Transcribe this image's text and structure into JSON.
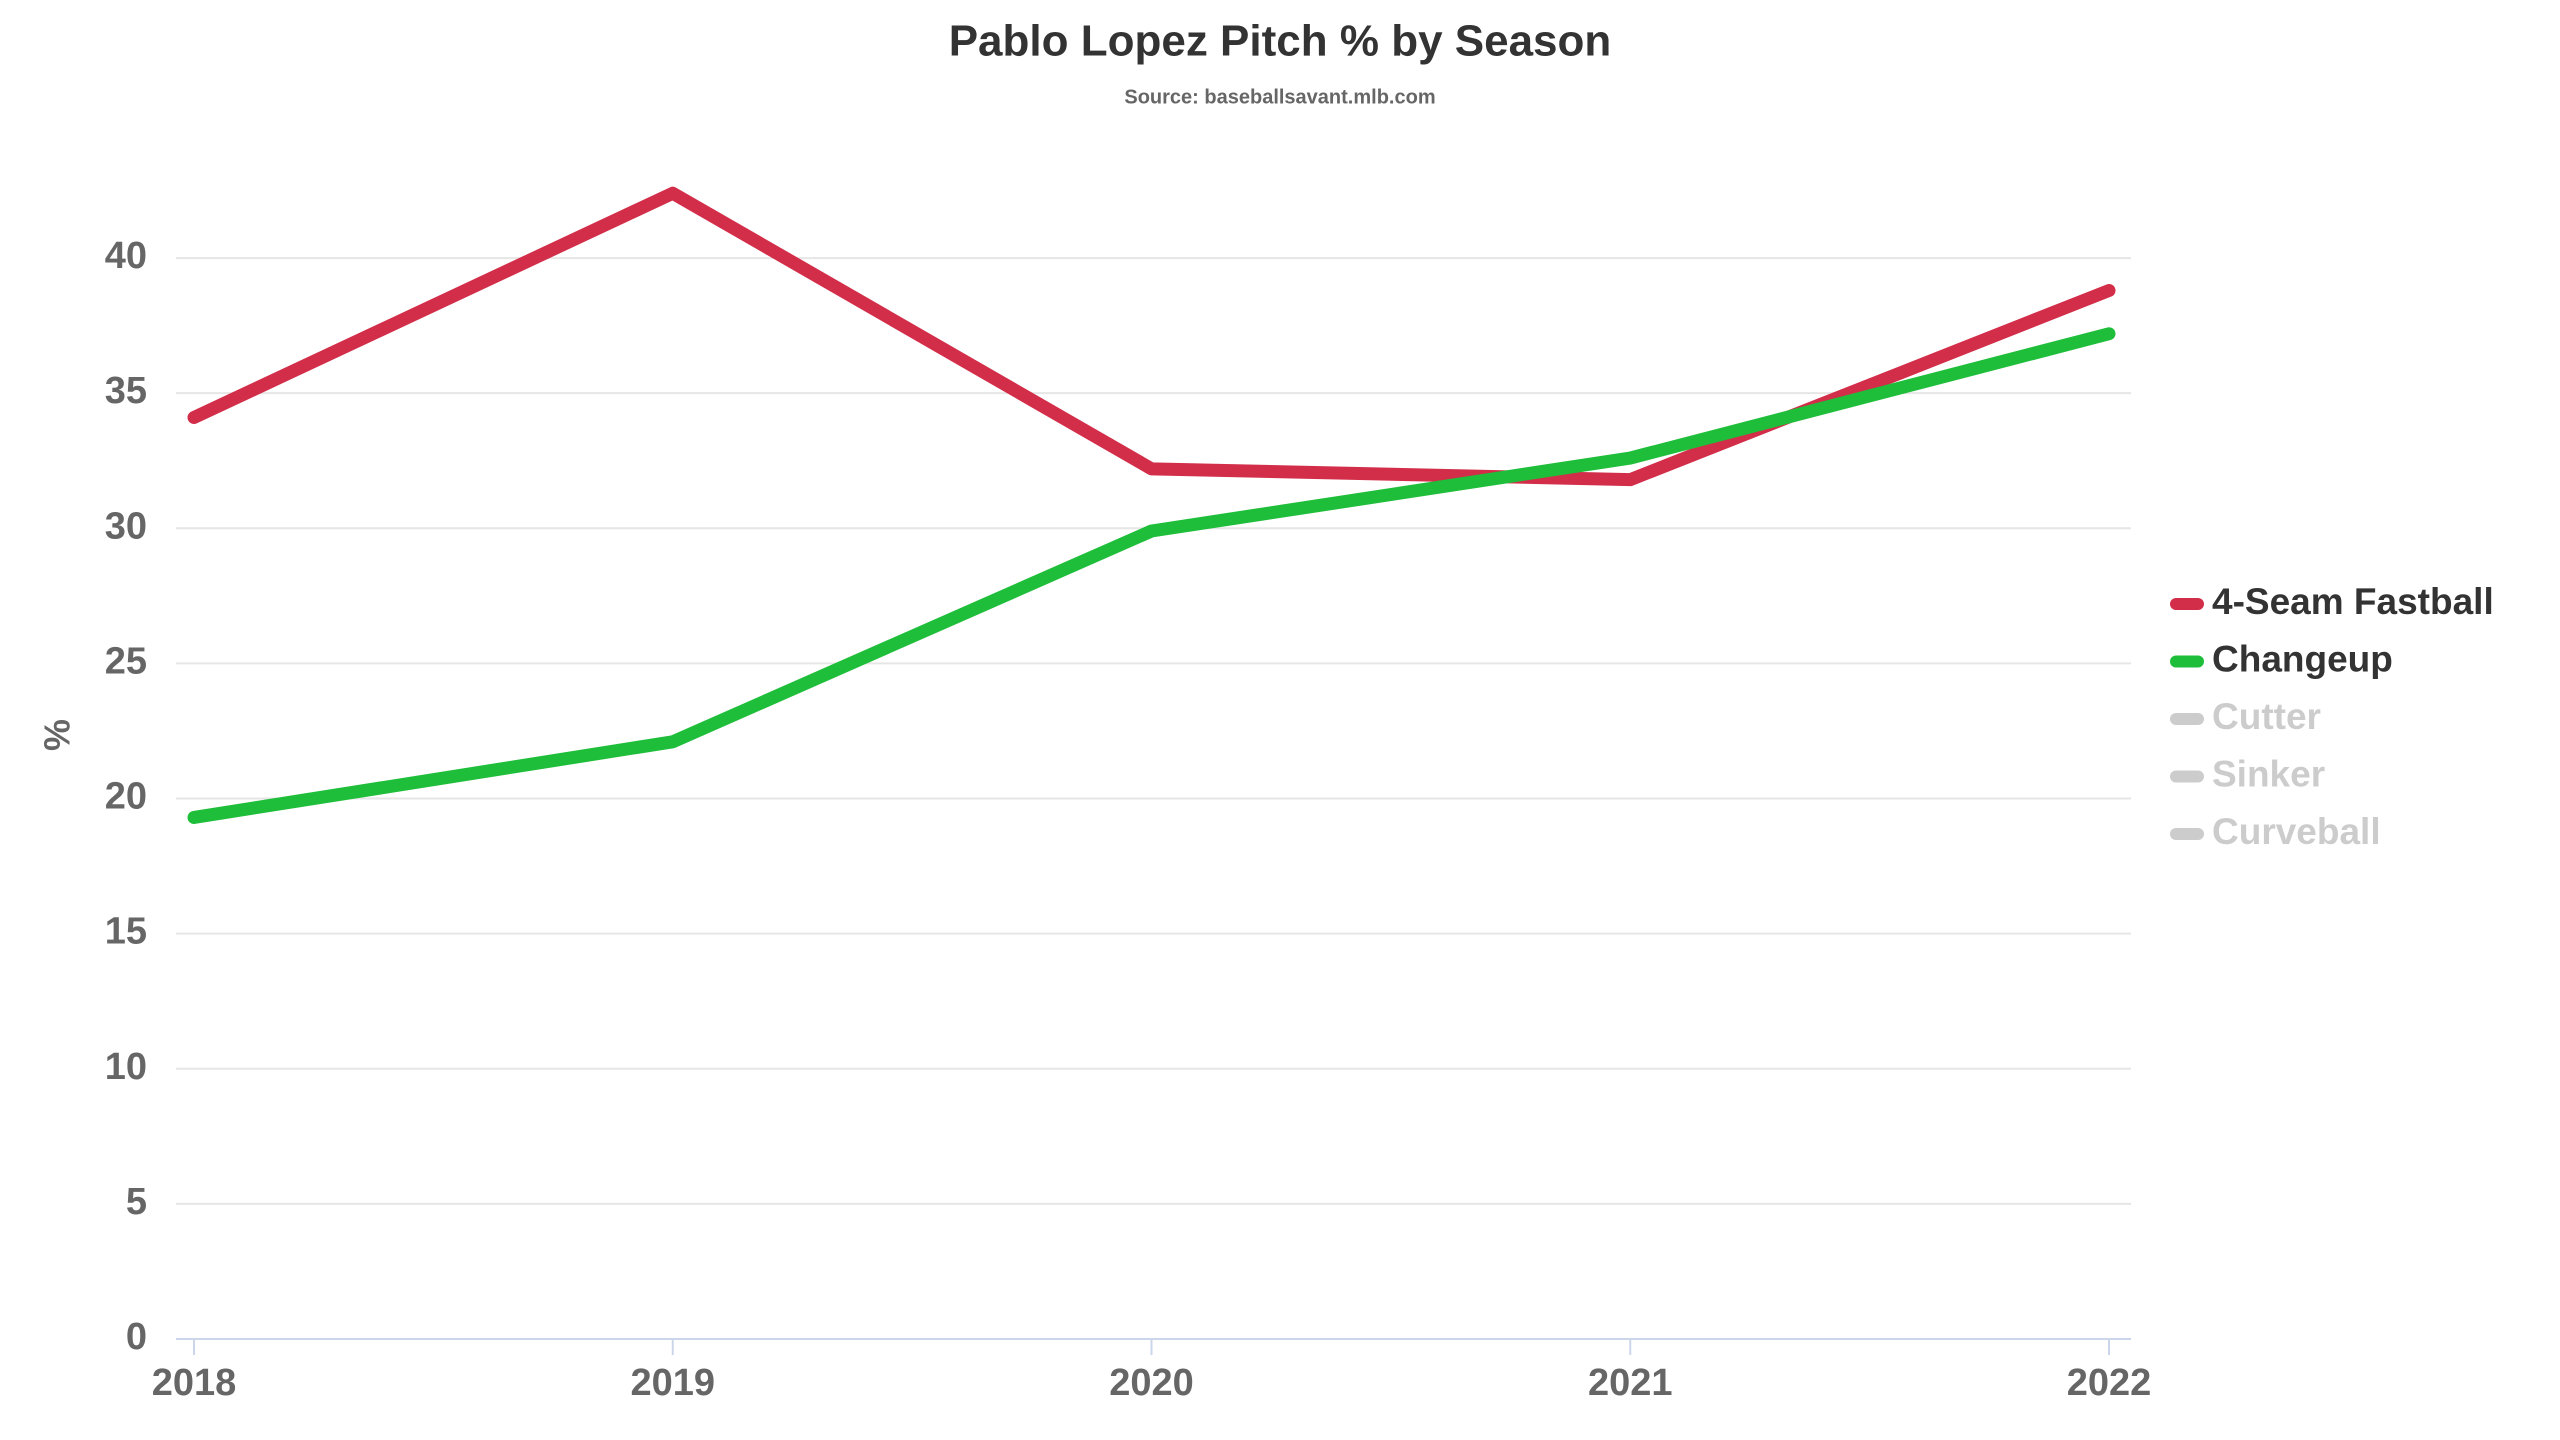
{
  "chart_data": {
    "type": "line",
    "title": "Pablo Lopez Pitch % by Season",
    "subtitle": "Source: baseballsavant.mlb.com",
    "y_label": "%",
    "x": [
      2018,
      2019,
      2020,
      2021,
      2022
    ],
    "xlim": [
      2018,
      2022
    ],
    "xticks": [
      2018,
      2019,
      2020,
      2021,
      2022
    ],
    "ylim": [
      0,
      43
    ],
    "yticks": [
      0,
      5,
      10,
      15,
      20,
      25,
      30,
      35,
      40
    ],
    "grid": true,
    "legend": "right",
    "series": [
      {
        "name": "4-Seam Fastball",
        "color": "#d22d49",
        "visible": true,
        "values": [
          34.1,
          42.4,
          32.2,
          31.8,
          38.8
        ]
      },
      {
        "name": "Changeup",
        "color": "#1fbe3a",
        "visible": true,
        "values": [
          19.3,
          22.1,
          29.9,
          32.6,
          37.2
        ]
      },
      {
        "name": "Cutter",
        "color": "#cccccc",
        "visible": false,
        "values": [
          null,
          null,
          null,
          null,
          null
        ]
      },
      {
        "name": "Sinker",
        "color": "#cccccc",
        "visible": false,
        "values": [
          null,
          null,
          null,
          null,
          null
        ]
      },
      {
        "name": "Curveball",
        "color": "#cccccc",
        "visible": false,
        "values": [
          null,
          null,
          null,
          null,
          null
        ]
      }
    ]
  }
}
